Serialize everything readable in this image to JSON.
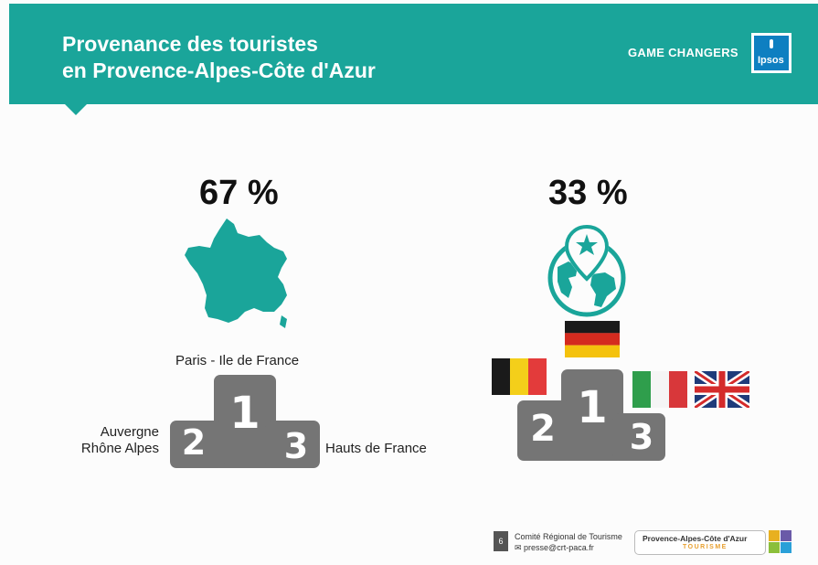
{
  "header": {
    "title_line1": "Provenance des touristes",
    "title_line2": "en Provence-Alpes-Côte d'Azur",
    "brand": "GAME CHANGERS",
    "logo_text": "Ipsos",
    "color": "#1aa59a"
  },
  "left": {
    "percent": "67 %",
    "icon": "france-map-icon",
    "podium": {
      "first_label": "Paris - Ile de France",
      "second_label_line1": "Auvergne",
      "second_label_line2": "Rhône Alpes",
      "third_label": "Hauts de France",
      "first": "1",
      "second": "2",
      "third": "3"
    }
  },
  "right": {
    "percent": "33 %",
    "icon": "globe-location-icon",
    "podium": {
      "first_flag": "germany-flag",
      "second_flag": "belgium-flag",
      "third_flags": [
        "italy-flag",
        "united-kingdom-flag"
      ],
      "first": "1",
      "second": "2",
      "third": "3"
    }
  },
  "footer": {
    "page": "6",
    "org": "Comité Régional de Tourisme",
    "email": "presse@crt-paca.fr",
    "brand_line1": "Provence-Alpes-Côte d'Azur",
    "brand_line2": "TOURISME"
  }
}
